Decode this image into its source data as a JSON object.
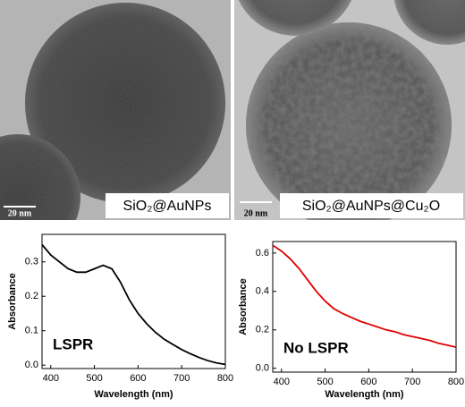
{
  "panels": [
    {
      "label": "SiO₂@AuNPs",
      "scale_bar": "20 nm"
    },
    {
      "label": "SiO₂@AuNPs@Cu₂O",
      "scale_bar": "20 nm"
    }
  ],
  "chart_data": [
    {
      "type": "line",
      "annotation": "LSPR",
      "xlabel": "Wavelength (nm)",
      "ylabel": "Absorbance",
      "color": "#000000",
      "x": [
        380,
        400,
        420,
        440,
        460,
        480,
        500,
        520,
        540,
        560,
        580,
        600,
        620,
        640,
        660,
        680,
        700,
        720,
        740,
        760,
        780,
        800
      ],
      "values": [
        0.35,
        0.32,
        0.3,
        0.28,
        0.27,
        0.27,
        0.28,
        0.29,
        0.28,
        0.24,
        0.19,
        0.15,
        0.12,
        0.095,
        0.075,
        0.06,
        0.045,
        0.033,
        0.022,
        0.013,
        0.006,
        0.002
      ],
      "xlim": [
        380,
        800
      ],
      "xticks": [
        400,
        500,
        600,
        700,
        800
      ],
      "ylim": [
        -0.01,
        0.38
      ],
      "yticks": [
        {
          "value": 0,
          "label": "0.0"
        },
        0.1,
        0.2,
        0.3
      ]
    },
    {
      "type": "line",
      "annotation": "No LSPR",
      "xlabel": "Wavelength (nm)",
      "ylabel": "Absorbance",
      "color": "#e00000",
      "x": [
        380,
        400,
        420,
        440,
        460,
        480,
        500,
        520,
        540,
        560,
        580,
        600,
        620,
        640,
        660,
        680,
        700,
        720,
        740,
        760,
        780,
        800
      ],
      "values": [
        0.64,
        0.61,
        0.57,
        0.52,
        0.46,
        0.4,
        0.35,
        0.31,
        0.285,
        0.265,
        0.245,
        0.23,
        0.215,
        0.2,
        0.19,
        0.175,
        0.165,
        0.155,
        0.145,
        0.13,
        0.12,
        0.11
      ],
      "xlim": [
        380,
        800
      ],
      "xticks": [
        400,
        500,
        600,
        700,
        800
      ],
      "ylim": [
        -0.02,
        0.66
      ],
      "yticks": [
        {
          "value": 0,
          "label": "0.0"
        },
        0.2,
        0.4,
        0.6
      ]
    }
  ]
}
